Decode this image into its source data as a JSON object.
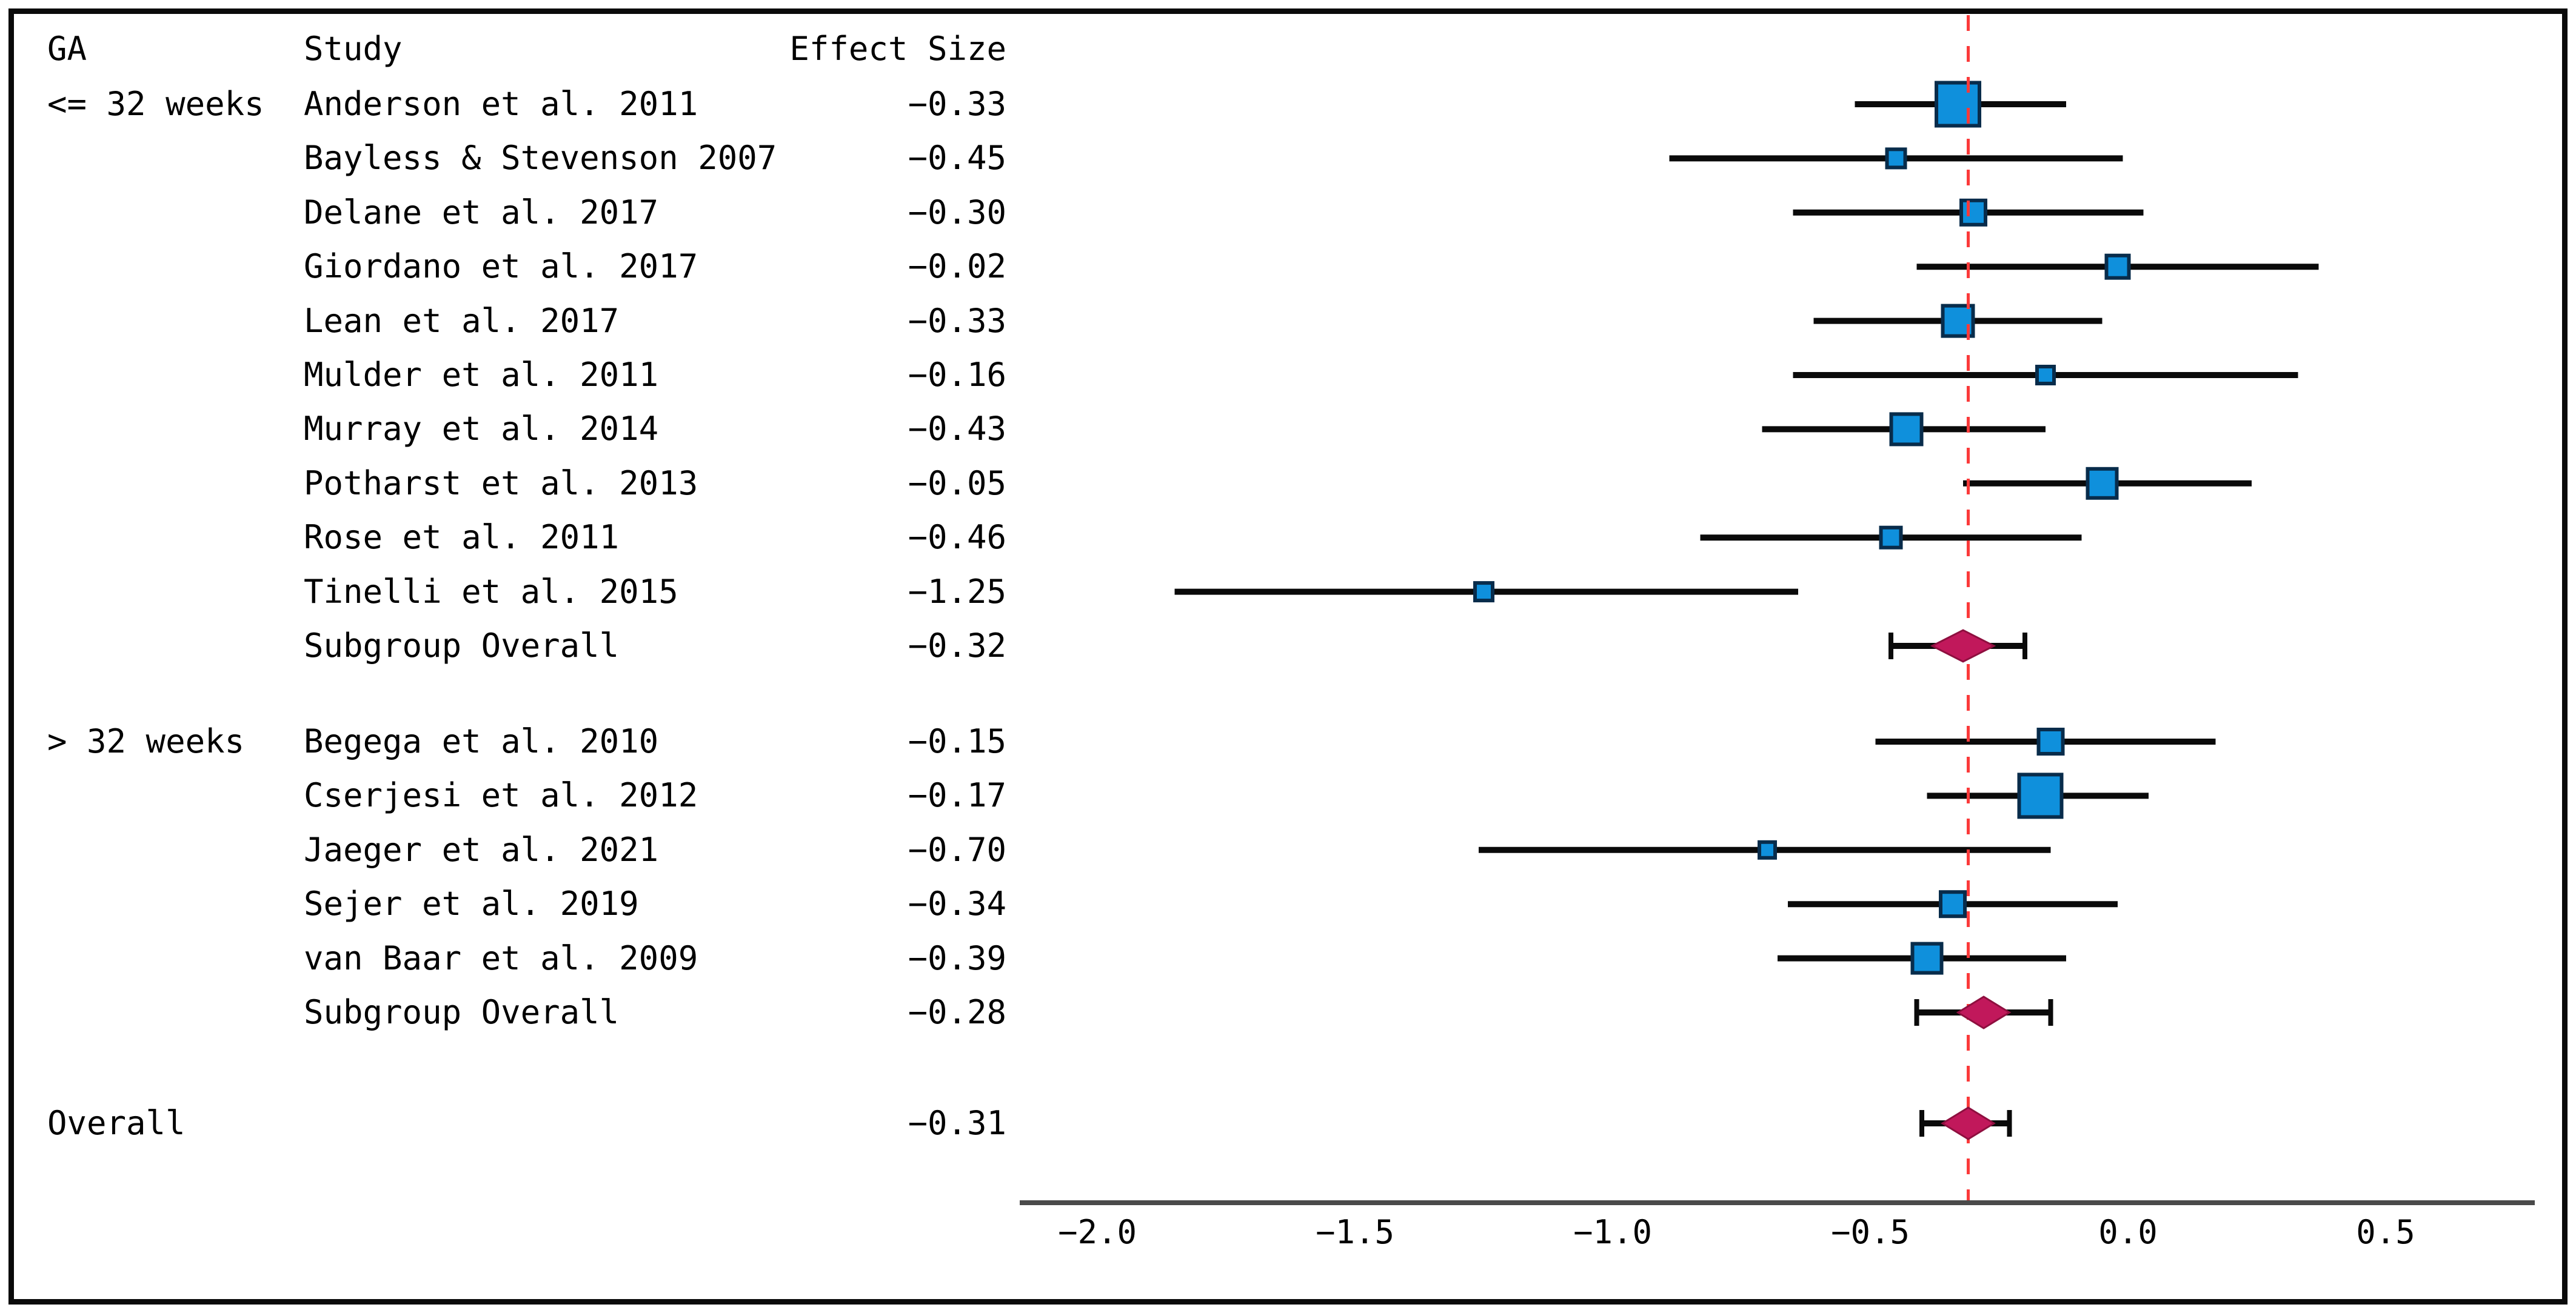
{
  "figure": {
    "background": "#ffffff",
    "border_color": "#0a0a0a"
  },
  "columns": {
    "ga": "GA",
    "study": "Study",
    "effect_size": "Effect Size"
  },
  "colors": {
    "marker_fill": "#0f90dc",
    "marker_stroke": "#082c4b",
    "ci_line": "#0a0a0a",
    "diamond_fill": "#c1185b",
    "diamond_stroke": "#8e0f3f",
    "reference_line": "#fb3a3a",
    "axis_line": "#4a4a4a",
    "text": "#000000"
  },
  "chart_data": {
    "type": "forest",
    "title": "",
    "xlabel": "",
    "x_axis": {
      "ticks": [
        -2.0,
        -1.5,
        -1.0,
        -0.5,
        0.0,
        0.5
      ],
      "tick_labels": [
        "−2.0",
        "−1.5",
        "−1.0",
        "−0.5",
        "0.0",
        "0.5"
      ],
      "range": [
        -2.15,
        0.79
      ],
      "grid": false
    },
    "reference_line": {
      "value": -0.31,
      "style": "dashed"
    },
    "groups": [
      {
        "ga_label": "<= 32 weeks",
        "studies": [
          {
            "label": "Anderson et al. 2011",
            "effect": -0.33,
            "effect_text": "−0.33",
            "ci_low": -0.53,
            "ci_high": -0.12,
            "marker_size": 71
          },
          {
            "label": "Bayless & Stevenson 2007",
            "effect": -0.45,
            "effect_text": "−0.45",
            "ci_low": -0.89,
            "ci_high": -0.01,
            "marker_size": 30
          },
          {
            "label": "Delane et al. 2017",
            "effect": -0.3,
            "effect_text": "−0.30",
            "ci_low": -0.65,
            "ci_high": 0.03,
            "marker_size": 40
          },
          {
            "label": "Giordano et al. 2017",
            "effect": -0.02,
            "effect_text": "−0.02",
            "ci_low": -0.41,
            "ci_high": 0.37,
            "marker_size": 37
          },
          {
            "label": "Lean et al. 2017",
            "effect": -0.33,
            "effect_text": "−0.33",
            "ci_low": -0.61,
            "ci_high": -0.05,
            "marker_size": 50
          },
          {
            "label": "Mulder et al. 2011",
            "effect": -0.16,
            "effect_text": "−0.16",
            "ci_low": -0.65,
            "ci_high": 0.33,
            "marker_size": 28
          },
          {
            "label": "Murray et al. 2014",
            "effect": -0.43,
            "effect_text": "−0.43",
            "ci_low": -0.71,
            "ci_high": -0.16,
            "marker_size": 50
          },
          {
            "label": "Potharst et al. 2013",
            "effect": -0.05,
            "effect_text": "−0.05",
            "ci_low": -0.32,
            "ci_high": 0.24,
            "marker_size": 48
          },
          {
            "label": "Rose et al. 2011",
            "effect": -0.46,
            "effect_text": "−0.46",
            "ci_low": -0.83,
            "ci_high": -0.09,
            "marker_size": 33
          },
          {
            "label": "Tinelli et al. 2015",
            "effect": -1.25,
            "effect_text": "−1.25",
            "ci_low": -1.85,
            "ci_high": -0.64,
            "marker_size": 29
          }
        ],
        "summary": {
          "label": "Subgroup Overall",
          "effect": -0.32,
          "effect_text": "−0.32",
          "diamond_low": -0.38,
          "diamond_high": -0.26,
          "whisker_low": -0.46,
          "whisker_high": -0.2
        }
      },
      {
        "ga_label": "> 32 weeks",
        "studies": [
          {
            "label": "Begega et al. 2010",
            "effect": -0.15,
            "effect_text": "−0.15",
            "ci_low": -0.49,
            "ci_high": 0.17,
            "marker_size": 40
          },
          {
            "label": "Cserjesi et al. 2012",
            "effect": -0.17,
            "effect_text": "−0.17",
            "ci_low": -0.39,
            "ci_high": 0.04,
            "marker_size": 70
          },
          {
            "label": "Jaeger et al. 2021",
            "effect": -0.7,
            "effect_text": "−0.70",
            "ci_low": -1.26,
            "ci_high": -0.15,
            "marker_size": 26
          },
          {
            "label": "Sejer et al. 2019",
            "effect": -0.34,
            "effect_text": "−0.34",
            "ci_low": -0.66,
            "ci_high": -0.02,
            "marker_size": 40
          },
          {
            "label": "van Baar et al. 2009",
            "effect": -0.39,
            "effect_text": "−0.39",
            "ci_low": -0.68,
            "ci_high": -0.12,
            "marker_size": 48
          }
        ],
        "summary": {
          "label": "Subgroup Overall",
          "effect": -0.28,
          "effect_text": "−0.28",
          "diamond_low": -0.33,
          "diamond_high": -0.23,
          "whisker_low": -0.41,
          "whisker_high": -0.15
        }
      }
    ],
    "overall": {
      "label": "Overall",
      "effect": -0.31,
      "effect_text": "−0.31",
      "diamond_low": -0.36,
      "diamond_high": -0.26,
      "whisker_low": -0.4,
      "whisker_high": -0.23
    }
  }
}
